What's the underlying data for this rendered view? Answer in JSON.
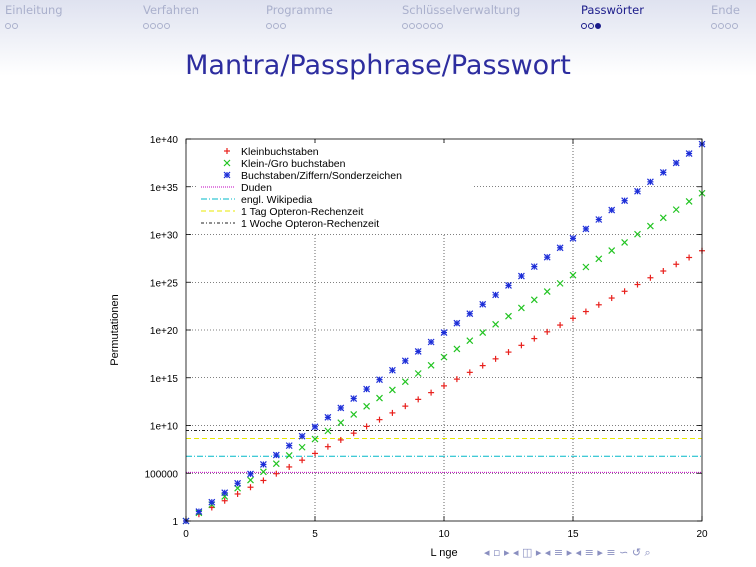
{
  "navigation": {
    "sections": [
      {
        "label": "Einleitung",
        "dots": 2,
        "current": -1
      },
      {
        "label": "Verfahren",
        "dots": 4,
        "current": -1
      },
      {
        "label": "Programme",
        "dots": 3,
        "current": -1
      },
      {
        "label": "Schlüsselverwaltung",
        "dots": 6,
        "current": -1
      },
      {
        "label": "Passwörter",
        "dots": 3,
        "current": 2
      },
      {
        "label": "Ende",
        "dots": 4,
        "current": -1
      }
    ],
    "active_index": 4
  },
  "slide": {
    "title": "Mantra/Passphrase/Passwort",
    "nav_symbols": "◂ ▫ ▸ ◂ ◫ ▸ ◂ ≡ ▸ ◂ ≡ ▸ ≡ ∽ ↺ ⌕"
  },
  "chart_data": {
    "type": "scatter",
    "xlabel": "L nge",
    "ylabel": "Permutationen",
    "xlim": [
      0,
      20
    ],
    "ylim_log10": [
      0,
      40
    ],
    "x_ticks": [
      "0",
      "5",
      "10",
      "15",
      "20"
    ],
    "y_ticks": [
      "1",
      "100000",
      "1e+10",
      "1e+15",
      "1e+20",
      "1e+25",
      "1e+30",
      "1e+35",
      "1e+40"
    ],
    "x_values": [
      0,
      0.5,
      1,
      1.5,
      2,
      2.5,
      3,
      3.5,
      4,
      4.5,
      5,
      5.5,
      6,
      6.5,
      7,
      7.5,
      8,
      8.5,
      9,
      9.5,
      10,
      10.5,
      11,
      11.5,
      12,
      12.5,
      13,
      13.5,
      14,
      14.5,
      15,
      15.5,
      16,
      16.5,
      17,
      17.5,
      18,
      18.5,
      19,
      19.5,
      20
    ],
    "grid": true,
    "legend_position": "top-left",
    "series": [
      {
        "name": "Kleinbuchstaben",
        "marker": "+",
        "color": "#e8201c",
        "base": 26
      },
      {
        "name": "Klein-/Gro buchstaben",
        "marker": "x",
        "color": "#22c422",
        "base": 52
      },
      {
        "name": "Buchstaben/Ziffern/Sonderzeichen",
        "marker": "*",
        "color": "#1d2ed8",
        "base": 94
      }
    ],
    "reference_lines": [
      {
        "name": "Duden",
        "value": 125000,
        "color": "#c000c0",
        "dash": "1,1"
      },
      {
        "name": "engl. Wikipedia",
        "value": 6000000,
        "color": "#00b8c8",
        "dash": "6,2,1,2"
      },
      {
        "name": "1 Tag Opteron-Rechenzeit",
        "value": 430000000.0,
        "color": "#e8e800",
        "dash": "5,3"
      },
      {
        "name": "1 Woche Opteron-Rechenzeit",
        "value": 3000000000.0,
        "color": "#222222",
        "dash": "3,2,1,2"
      }
    ]
  }
}
